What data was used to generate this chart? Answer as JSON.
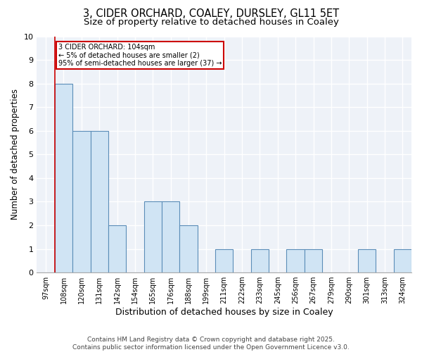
{
  "title1": "3, CIDER ORCHARD, COALEY, DURSLEY, GL11 5ET",
  "title2": "Size of property relative to detached houses in Coaley",
  "xlabel": "Distribution of detached houses by size in Coaley",
  "ylabel": "Number of detached properties",
  "categories": [
    "97sqm",
    "108sqm",
    "120sqm",
    "131sqm",
    "142sqm",
    "154sqm",
    "165sqm",
    "176sqm",
    "188sqm",
    "199sqm",
    "211sqm",
    "222sqm",
    "233sqm",
    "245sqm",
    "256sqm",
    "267sqm",
    "279sqm",
    "290sqm",
    "301sqm",
    "313sqm",
    "324sqm"
  ],
  "values": [
    0,
    8,
    6,
    6,
    2,
    0,
    3,
    3,
    2,
    0,
    1,
    0,
    1,
    0,
    1,
    1,
    0,
    0,
    1,
    0,
    1
  ],
  "bar_color": "#d0e4f4",
  "bar_edge_color": "#5b8db8",
  "red_line_index": 1,
  "ylim": [
    0,
    10
  ],
  "yticks": [
    0,
    1,
    2,
    3,
    4,
    5,
    6,
    7,
    8,
    9,
    10
  ],
  "annotation_text": "3 CIDER ORCHARD: 104sqm\n← 5% of detached houses are smaller (2)\n95% of semi-detached houses are larger (37) →",
  "annotation_box_facecolor": "#ffffff",
  "annotation_border_color": "#cc0000",
  "footer": "Contains HM Land Registry data © Crown copyright and database right 2025.\nContains public sector information licensed under the Open Government Licence v3.0.",
  "background_color": "#ffffff",
  "plot_bg_color": "#eef2f8",
  "grid_color": "#ffffff",
  "title_fontsize": 10.5,
  "subtitle_fontsize": 9.5,
  "tick_fontsize": 7,
  "ylabel_fontsize": 8.5,
  "xlabel_fontsize": 9,
  "footer_fontsize": 6.5
}
